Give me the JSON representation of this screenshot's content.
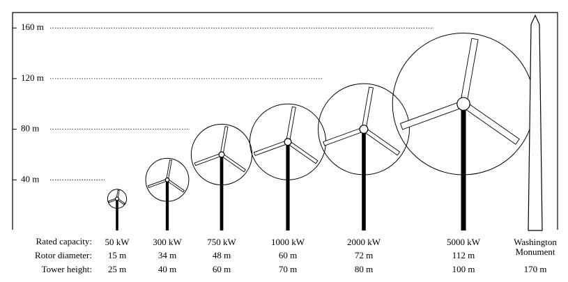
{
  "chart_data": {
    "type": "turbine",
    "ylim": [
      0,
      170
    ],
    "yticks": [
      {
        "value": 40,
        "label": "40 m"
      },
      {
        "value": 80,
        "label": "80 m"
      },
      {
        "value": 120,
        "label": "120 m"
      },
      {
        "value": 160,
        "label": "160 m"
      }
    ],
    "row_label": "Rated capacity:",
    "categories": [
      "50 kW",
      "300 kW",
      "750 kW",
      "1000 kW",
      "2000 kW",
      "5000 kW",
      "Washington Monument"
    ],
    "series": [
      {
        "name": "Rotor diameter:",
        "values": [
          15,
          34,
          48,
          60,
          72,
          112,
          null
        ],
        "value_labels": [
          "15 m",
          "34 m",
          "48 m",
          "60 m",
          "72 m",
          "112 m",
          null
        ]
      },
      {
        "name": "Tower height:",
        "values": [
          25,
          40,
          60,
          70,
          80,
          100,
          170
        ],
        "value_labels": [
          "25 m",
          "40 m",
          "60 m",
          "70 m",
          "80 m",
          "100 m",
          "170 m"
        ]
      }
    ],
    "color": "#000000",
    "grid": true
  }
}
